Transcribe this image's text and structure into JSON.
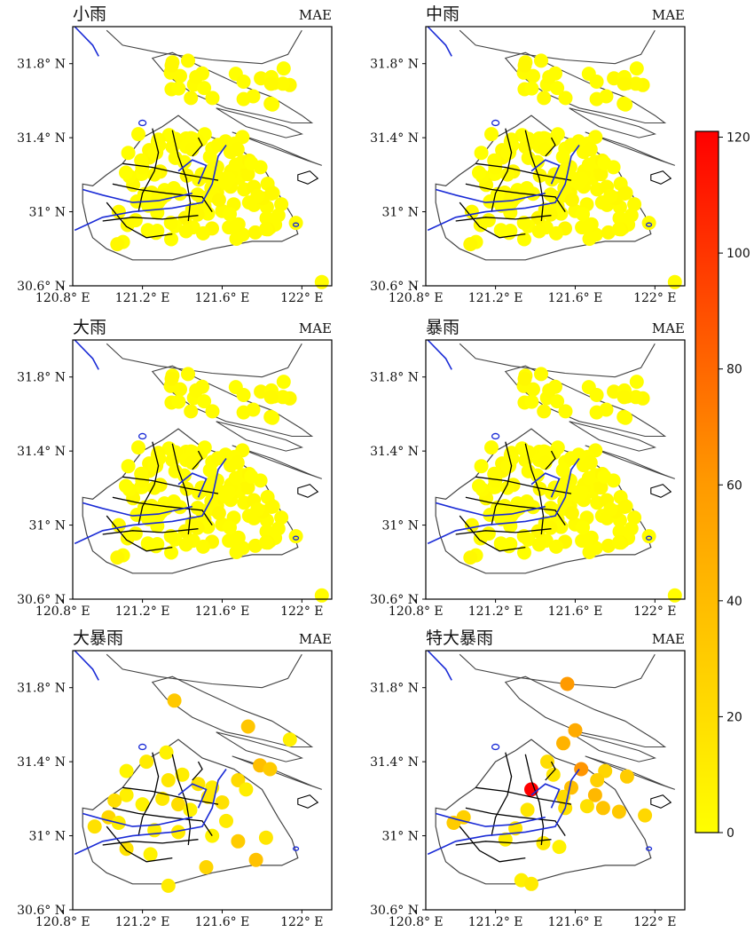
{
  "figure": {
    "colorbar": {
      "ticks": [
        "0",
        "20",
        "40",
        "60",
        "80",
        "100",
        "120"
      ],
      "min": 0,
      "max": 121,
      "colors": {
        "low": "#ffff00",
        "mid": "#ff9900",
        "high": "#ff0000"
      }
    },
    "map_colors": {
      "coast": "#444444",
      "district": "#000000",
      "river": "#1a2bd6"
    },
    "xlim": [
      120.85,
      122.15
    ],
    "ylim": [
      30.6,
      32.0
    ]
  },
  "chart_data": [
    {
      "type": "scatter",
      "title": "小雨",
      "metric": "MAE",
      "xticks": [
        "120.8° E",
        "121.2° E",
        "121.6° E",
        "122° E"
      ],
      "yticks": [
        "31.8° N",
        "31.4° N",
        "31° N",
        "30.6° N"
      ],
      "value_range": [
        0,
        4
      ],
      "points": []
    },
    {
      "type": "scatter",
      "title": "中雨",
      "metric": "MAE",
      "xticks": [
        "120.8° E",
        "121.2° E",
        "121.6° E",
        "122° E"
      ],
      "yticks": [
        "31.8° N",
        "31.4° N",
        "31° N",
        "30.6° N"
      ],
      "value_range": [
        0,
        5
      ],
      "points": []
    },
    {
      "type": "scatter",
      "title": "大雨",
      "metric": "MAE",
      "xticks": [
        "120.8° E",
        "121.2° E",
        "121.6° E",
        "122° E"
      ],
      "yticks": [
        "31.8° N",
        "31.4° N",
        "31° N",
        "30.6° N"
      ],
      "value_range": [
        0,
        6
      ],
      "points": []
    },
    {
      "type": "scatter",
      "title": "暴雨",
      "metric": "MAE",
      "xticks": [
        "120.8° E",
        "121.2° E",
        "121.6° E",
        "122° E"
      ],
      "yticks": [
        "31.8° N",
        "31.4° N",
        "31° N",
        "30.6° N"
      ],
      "value_range": [
        0,
        9
      ],
      "points": []
    },
    {
      "type": "scatter",
      "title": "大暴雨",
      "metric": "MAE",
      "xticks": [
        "120.8° E",
        "121.2° E",
        "121.6° E",
        "122° E"
      ],
      "yticks": [
        "31.8° N",
        "31.4° N",
        "31° N",
        "30.6° N"
      ],
      "points": [
        {
          "lon": 121.36,
          "lat": 31.73,
          "value": 32
        },
        {
          "lon": 121.73,
          "lat": 31.59,
          "value": 34
        },
        {
          "lon": 121.94,
          "lat": 31.52,
          "value": 9
        },
        {
          "lon": 121.32,
          "lat": 31.45,
          "value": 8
        },
        {
          "lon": 121.22,
          "lat": 31.4,
          "value": 12
        },
        {
          "lon": 121.12,
          "lat": 31.35,
          "value": 6
        },
        {
          "lon": 121.33,
          "lat": 31.3,
          "value": 14
        },
        {
          "lon": 121.4,
          "lat": 31.33,
          "value": 10
        },
        {
          "lon": 121.48,
          "lat": 31.28,
          "value": 16
        },
        {
          "lon": 121.55,
          "lat": 31.26,
          "value": 11
        },
        {
          "lon": 121.79,
          "lat": 31.38,
          "value": 38
        },
        {
          "lon": 121.84,
          "lat": 31.36,
          "value": 31
        },
        {
          "lon": 121.68,
          "lat": 31.3,
          "value": 22
        },
        {
          "lon": 121.72,
          "lat": 31.25,
          "value": 10
        },
        {
          "lon": 121.6,
          "lat": 31.18,
          "value": 18
        },
        {
          "lon": 121.12,
          "lat": 31.22,
          "value": 9
        },
        {
          "lon": 121.2,
          "lat": 31.17,
          "value": 7
        },
        {
          "lon": 121.3,
          "lat": 31.2,
          "value": 13
        },
        {
          "lon": 121.38,
          "lat": 31.17,
          "value": 20
        },
        {
          "lon": 121.44,
          "lat": 31.14,
          "value": 8
        },
        {
          "lon": 121.53,
          "lat": 31.21,
          "value": 15
        },
        {
          "lon": 121.62,
          "lat": 31.08,
          "value": 12
        },
        {
          "lon": 121.03,
          "lat": 31.1,
          "value": 24
        },
        {
          "lon": 120.96,
          "lat": 31.05,
          "value": 18
        },
        {
          "lon": 121.08,
          "lat": 31.07,
          "value": 10
        },
        {
          "lon": 121.26,
          "lat": 31.03,
          "value": 9
        },
        {
          "lon": 121.38,
          "lat": 31.02,
          "value": 12
        },
        {
          "lon": 121.55,
          "lat": 31.0,
          "value": 7
        },
        {
          "lon": 121.68,
          "lat": 30.97,
          "value": 30
        },
        {
          "lon": 121.82,
          "lat": 30.99,
          "value": 15
        },
        {
          "lon": 121.12,
          "lat": 30.93,
          "value": 17
        },
        {
          "lon": 121.24,
          "lat": 30.9,
          "value": 8
        },
        {
          "lon": 121.77,
          "lat": 30.87,
          "value": 36
        },
        {
          "lon": 121.52,
          "lat": 30.83,
          "value": 25
        },
        {
          "lon": 121.33,
          "lat": 30.73,
          "value": 11
        },
        {
          "lon": 121.06,
          "lat": 31.19,
          "value": 19
        }
      ]
    },
    {
      "type": "scatter",
      "title": "特大暴雨",
      "metric": "MAE",
      "xticks": [
        "120.8° E",
        "121.2° E",
        "121.6° E",
        "122° E"
      ],
      "yticks": [
        "31.8° N",
        "31.4° N",
        "31° N",
        "30.6° N"
      ],
      "points": [
        {
          "lon": 121.56,
          "lat": 31.82,
          "value": 60
        },
        {
          "lon": 121.6,
          "lat": 31.57,
          "value": 50
        },
        {
          "lon": 121.54,
          "lat": 31.5,
          "value": 45
        },
        {
          "lon": 121.46,
          "lat": 31.4,
          "value": 20
        },
        {
          "lon": 121.49,
          "lat": 31.33,
          "value": 15
        },
        {
          "lon": 121.63,
          "lat": 31.36,
          "value": 62
        },
        {
          "lon": 121.75,
          "lat": 31.35,
          "value": 25
        },
        {
          "lon": 121.86,
          "lat": 31.32,
          "value": 30
        },
        {
          "lon": 121.71,
          "lat": 31.3,
          "value": 28
        },
        {
          "lon": 121.58,
          "lat": 31.26,
          "value": 38
        },
        {
          "lon": 121.38,
          "lat": 31.25,
          "value": 121
        },
        {
          "lon": 121.54,
          "lat": 31.21,
          "value": 22
        },
        {
          "lon": 121.7,
          "lat": 31.22,
          "value": 42
        },
        {
          "lon": 121.66,
          "lat": 31.16,
          "value": 18
        },
        {
          "lon": 121.74,
          "lat": 31.15,
          "value": 35
        },
        {
          "lon": 121.82,
          "lat": 31.13,
          "value": 32
        },
        {
          "lon": 121.95,
          "lat": 31.11,
          "value": 24
        },
        {
          "lon": 121.36,
          "lat": 31.14,
          "value": 15
        },
        {
          "lon": 121.55,
          "lat": 31.15,
          "value": 18
        },
        {
          "lon": 121.04,
          "lat": 31.1,
          "value": 28
        },
        {
          "lon": 120.99,
          "lat": 31.07,
          "value": 30
        },
        {
          "lon": 121.3,
          "lat": 31.04,
          "value": 14
        },
        {
          "lon": 121.25,
          "lat": 30.98,
          "value": 10
        },
        {
          "lon": 121.44,
          "lat": 30.96,
          "value": 12
        },
        {
          "lon": 121.52,
          "lat": 30.94,
          "value": 8
        },
        {
          "lon": 121.33,
          "lat": 30.76,
          "value": 9
        },
        {
          "lon": 121.38,
          "lat": 30.74,
          "value": 12
        }
      ]
    }
  ]
}
